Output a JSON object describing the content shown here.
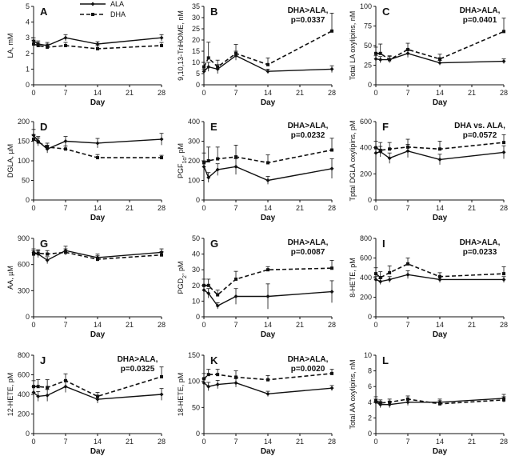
{
  "legend": {
    "ala": "ALA",
    "dha": "DHA"
  },
  "chart_data": [
    {
      "type": "line",
      "panel": "A",
      "ylabel": "LA, mM",
      "xlabel": "Day",
      "xticks": [
        0,
        7,
        14,
        21,
        28
      ],
      "ylim": [
        0,
        5
      ],
      "yticks": [
        0,
        1,
        2,
        3,
        4,
        5
      ],
      "x": [
        0,
        1,
        3,
        7,
        14,
        28
      ],
      "series": [
        {
          "name": "ALA",
          "values": [
            2.8,
            2.6,
            2.5,
            3.0,
            2.6,
            3.0
          ],
          "err": [
            0.2,
            0.2,
            0.2,
            0.2,
            0.15,
            0.2
          ]
        },
        {
          "name": "DHA",
          "values": [
            2.6,
            2.5,
            2.4,
            2.5,
            2.3,
            2.5
          ],
          "err": [
            0.25,
            0.2,
            0.2,
            0.2,
            0.2,
            0.2
          ]
        }
      ],
      "annotation": []
    },
    {
      "type": "line",
      "panel": "B",
      "ylabel": "9,10,13-TriHOME, nM",
      "xlabel": "Day",
      "xticks": [
        0,
        7,
        14,
        21,
        28
      ],
      "ylim": [
        0,
        35
      ],
      "yticks": [
        0,
        5,
        10,
        15,
        20,
        25,
        30,
        35
      ],
      "x": [
        0,
        1,
        3,
        7,
        14,
        28
      ],
      "series": [
        {
          "name": "ALA",
          "values": [
            6,
            8,
            7,
            13,
            6,
            7
          ],
          "err": [
            1,
            2,
            2,
            2,
            1,
            1.5
          ]
        },
        {
          "name": "DHA",
          "values": [
            8,
            12,
            8,
            14,
            9,
            24
          ],
          "err": [
            2,
            7,
            3,
            4,
            3,
            8
          ]
        }
      ],
      "annotation": [
        "DHA>ALA,",
        "p=0.0337"
      ]
    },
    {
      "type": "line",
      "panel": "C",
      "ylabel": "Total LA oxylipins, nM",
      "xlabel": "Day",
      "xticks": [
        0,
        7,
        14,
        21,
        28
      ],
      "ylim": [
        0,
        100
      ],
      "yticks": [
        0,
        25,
        50,
        75,
        100
      ],
      "x": [
        0,
        1,
        3,
        7,
        14,
        28
      ],
      "series": [
        {
          "name": "ALA",
          "values": [
            33,
            32,
            32,
            40,
            28,
            30
          ],
          "err": [
            4,
            4,
            4,
            5,
            3,
            3
          ]
        },
        {
          "name": "DHA",
          "values": [
            40,
            40,
            32,
            45,
            33,
            68
          ],
          "err": [
            8,
            12,
            5,
            8,
            6,
            17
          ]
        }
      ],
      "annotation": [
        "DHA>ALA,",
        "p=0.0401"
      ]
    },
    {
      "type": "line",
      "panel": "D",
      "ylabel": "DGLA, µM",
      "xlabel": "Day",
      "xticks": [
        0,
        7,
        14,
        21,
        28
      ],
      "ylim": [
        0,
        200
      ],
      "yticks": [
        0,
        50,
        100,
        150,
        200
      ],
      "x": [
        0,
        1,
        3,
        7,
        14,
        28
      ],
      "series": [
        {
          "name": "ALA",
          "values": [
            165,
            150,
            130,
            150,
            145,
            155
          ],
          "err": [
            15,
            12,
            10,
            12,
            12,
            15
          ]
        },
        {
          "name": "DHA",
          "values": [
            155,
            148,
            135,
            130,
            108,
            108
          ],
          "err": [
            12,
            10,
            10,
            8,
            8,
            6
          ]
        }
      ],
      "annotation": []
    },
    {
      "type": "line",
      "panel": "E",
      "ylabel": "PGF1α, pM",
      "xlabel": "Day",
      "xticks": [
        0,
        7,
        14,
        21,
        28
      ],
      "ylim": [
        0,
        400
      ],
      "yticks": [
        0,
        100,
        200,
        300,
        400
      ],
      "x": [
        0,
        1,
        3,
        7,
        14,
        28
      ],
      "series": [
        {
          "name": "ALA",
          "values": [
            170,
            115,
            155,
            170,
            100,
            160
          ],
          "err": [
            30,
            25,
            30,
            40,
            20,
            50
          ]
        },
        {
          "name": "DHA",
          "values": [
            190,
            200,
            210,
            220,
            190,
            255
          ],
          "err": [
            50,
            70,
            60,
            60,
            40,
            60
          ]
        }
      ],
      "annotation": [
        "DHA>ALA,",
        "p=0.0232"
      ]
    },
    {
      "type": "line",
      "panel": "F",
      "ylabel": "Tptal DGLA oxylipins, pM",
      "xlabel": "Day",
      "xticks": [
        0,
        7,
        14,
        21,
        28
      ],
      "ylim": [
        0,
        600
      ],
      "yticks": [
        0,
        200,
        400,
        600
      ],
      "x": [
        0,
        1,
        3,
        7,
        14,
        28
      ],
      "series": [
        {
          "name": "ALA",
          "values": [
            360,
            370,
            320,
            375,
            310,
            365
          ],
          "err": [
            40,
            40,
            40,
            50,
            40,
            50
          ]
        },
        {
          "name": "DHA",
          "values": [
            400,
            380,
            390,
            405,
            390,
            440
          ],
          "err": [
            50,
            60,
            50,
            60,
            60,
            60
          ]
        }
      ],
      "annotation": [
        "DHA vs. ALA,",
        "p=0.0572"
      ]
    },
    {
      "type": "line",
      "panel": "G",
      "ylabel": "AA, µM",
      "xlabel": "Day",
      "xticks": [
        0,
        7,
        14,
        21,
        28
      ],
      "ylim": [
        0,
        900
      ],
      "yticks": [
        0,
        300,
        600,
        900
      ],
      "x": [
        0,
        1,
        3,
        7,
        14,
        28
      ],
      "series": [
        {
          "name": "ALA",
          "values": [
            740,
            720,
            650,
            760,
            680,
            740
          ],
          "err": [
            40,
            40,
            40,
            50,
            40,
            40
          ]
        },
        {
          "name": "DHA",
          "values": [
            720,
            730,
            720,
            740,
            660,
            710
          ],
          "err": [
            40,
            40,
            40,
            40,
            40,
            40
          ]
        }
      ],
      "annotation": []
    },
    {
      "type": "line",
      "panel": "G",
      "ylabel": "PGD2, pM",
      "xlabel": "Day",
      "xticks": [
        0,
        7,
        14,
        21,
        28
      ],
      "ylim": [
        0,
        50
      ],
      "yticks": [
        0,
        10,
        20,
        30,
        40,
        50
      ],
      "x": [
        0,
        1,
        3,
        7,
        14,
        28
      ],
      "series": [
        {
          "name": "ALA",
          "values": [
            17,
            15,
            7,
            13,
            13,
            16
          ],
          "err": [
            3,
            3,
            2,
            5,
            8,
            7
          ]
        },
        {
          "name": "DHA",
          "values": [
            20,
            20,
            14,
            24,
            30,
            31
          ],
          "err": [
            4,
            4,
            3,
            5,
            2,
            5
          ]
        }
      ],
      "annotation": [
        "DHA>ALA,",
        "p=0.0087"
      ]
    },
    {
      "type": "line",
      "panel": "I",
      "ylabel": "8-HETE, pM",
      "xlabel": "Day",
      "xticks": [
        0,
        7,
        14,
        21,
        28
      ],
      "ylim": [
        0,
        800
      ],
      "yticks": [
        0,
        200,
        400,
        600,
        800
      ],
      "x": [
        0,
        1,
        3,
        7,
        14,
        28
      ],
      "series": [
        {
          "name": "ALA",
          "values": [
            380,
            360,
            380,
            430,
            380,
            380
          ],
          "err": [
            30,
            30,
            30,
            40,
            30,
            30
          ]
        },
        {
          "name": "DHA",
          "values": [
            440,
            400,
            450,
            540,
            410,
            440
          ],
          "err": [
            60,
            60,
            70,
            60,
            40,
            70
          ]
        }
      ],
      "annotation": [
        "DHA>ALA,",
        "p=0.0233"
      ]
    },
    {
      "type": "line",
      "panel": "J",
      "ylabel": "12-HETE, pM",
      "xlabel": "Day",
      "xticks": [
        0,
        7,
        14,
        21,
        28
      ],
      "ylim": [
        0,
        800
      ],
      "yticks": [
        0,
        200,
        400,
        600,
        800
      ],
      "x": [
        0,
        1,
        3,
        7,
        14,
        28
      ],
      "series": [
        {
          "name": "ALA",
          "values": [
            420,
            380,
            390,
            480,
            350,
            400
          ],
          "err": [
            60,
            50,
            60,
            60,
            40,
            60
          ]
        },
        {
          "name": "DHA",
          "values": [
            480,
            480,
            470,
            540,
            380,
            580
          ],
          "err": [
            60,
            70,
            80,
            70,
            40,
            100
          ]
        }
      ],
      "annotation": [
        "DHA>ALA,",
        "p=0.0325"
      ]
    },
    {
      "type": "line",
      "panel": "K",
      "ylabel": "18-HETE, pM",
      "xlabel": "Day",
      "xticks": [
        0,
        7,
        14,
        21,
        28
      ],
      "ylim": [
        0,
        150
      ],
      "yticks": [
        0,
        50,
        100,
        150
      ],
      "x": [
        0,
        1,
        3,
        7,
        14,
        28
      ],
      "series": [
        {
          "name": "ALA",
          "values": [
            97,
            90,
            94,
            97,
            76,
            87
          ],
          "err": [
            8,
            8,
            8,
            8,
            5,
            5
          ]
        },
        {
          "name": "DHA",
          "values": [
            105,
            113,
            113,
            108,
            103,
            115
          ],
          "err": [
            10,
            10,
            10,
            12,
            8,
            8
          ]
        }
      ],
      "annotation": [
        "DHA>ALA,",
        "p=0.0020"
      ]
    },
    {
      "type": "line",
      "panel": "L",
      "ylabel": "Total AA oxylipins, nM",
      "xlabel": "Day",
      "xticks": [
        0,
        7,
        14,
        21,
        28
      ],
      "ylim": [
        0,
        10
      ],
      "yticks": [
        0,
        2,
        4,
        6,
        8,
        10
      ],
      "x": [
        0,
        1,
        3,
        7,
        14,
        28
      ],
      "series": [
        {
          "name": "ALA",
          "values": [
            4.0,
            3.7,
            3.7,
            4.0,
            4.0,
            4.5
          ],
          "err": [
            0.4,
            0.4,
            0.4,
            0.4,
            0.4,
            0.5
          ]
        },
        {
          "name": "DHA",
          "values": [
            4.2,
            3.9,
            4.0,
            4.4,
            3.8,
            4.3
          ],
          "err": [
            0.5,
            0.4,
            0.4,
            0.4,
            0.4,
            0.4
          ]
        }
      ],
      "annotation": []
    }
  ]
}
